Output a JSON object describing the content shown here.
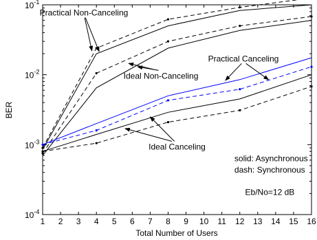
{
  "chart_data": {
    "type": "line",
    "xlabel": "Total Number of Users",
    "ylabel": "BER",
    "y_scale": "log",
    "xlim": [
      1,
      16
    ],
    "ylim": [
      0.0001,
      0.1
    ],
    "x_ticks": [
      "1",
      "2",
      "3",
      "4",
      "5",
      "6",
      "7",
      "8",
      "9",
      "10",
      "11",
      "12",
      "13",
      "14",
      "15",
      "16"
    ],
    "y_ticks": [
      {
        "value": 0.1,
        "base": "10",
        "exp": "-1"
      },
      {
        "value": 0.01,
        "base": "10",
        "exp": "-2"
      },
      {
        "value": 0.001,
        "base": "10",
        "exp": "-3"
      },
      {
        "value": 0.0001,
        "base": "10",
        "exp": "-4"
      }
    ],
    "grid": false,
    "series": [
      {
        "x": [
          1,
          4,
          8,
          12,
          16
        ],
        "values": [
          0.00085,
          0.02,
          0.05,
          0.083,
          0.1
        ],
        "style": "solid",
        "color": "#000000",
        "markers": false
      },
      {
        "x": [
          1,
          4,
          8,
          12,
          16
        ],
        "values": [
          0.0007,
          0.0065,
          0.024,
          0.043,
          0.06
        ],
        "style": "solid",
        "color": "#000000",
        "markers": false
      },
      {
        "x": [
          1,
          4,
          8,
          12,
          16
        ],
        "values": [
          0.0009,
          0.024,
          0.062,
          0.092,
          0.125
        ],
        "style": "dash",
        "color": "#000000",
        "markers": true
      },
      {
        "x": [
          1,
          4,
          8,
          12,
          16
        ],
        "values": [
          0.00075,
          0.0105,
          0.03,
          0.05,
          0.068
        ],
        "style": "dash",
        "color": "#000000",
        "markers": true
      },
      {
        "x": [
          1,
          4,
          8,
          12,
          16
        ],
        "values": [
          0.001,
          0.002,
          0.005,
          0.0085,
          0.0175
        ],
        "style": "solid",
        "color": "#0000ff",
        "markers": false
      },
      {
        "x": [
          1,
          4,
          8,
          12,
          16
        ],
        "values": [
          0.001,
          0.0016,
          0.0043,
          0.0062,
          0.013
        ],
        "style": "dash",
        "color": "#0000ff",
        "markers": true
      },
      {
        "x": [
          1,
          4,
          8,
          12,
          16
        ],
        "values": [
          0.0008,
          0.0014,
          0.0029,
          0.0045,
          0.01
        ],
        "style": "solid",
        "color": "#000000",
        "markers": false
      },
      {
        "x": [
          1,
          4,
          8,
          12,
          16
        ],
        "values": [
          0.0008,
          0.00105,
          0.0021,
          0.0031,
          0.0068
        ],
        "style": "dash",
        "color": "#000000",
        "markers": true
      }
    ],
    "annotations": [
      {
        "text": "Practical Non-Canceling",
        "x": 3.3,
        "y": 0.07,
        "arrows": [
          {
            "x": 4.15,
            "y": 0.0215
          },
          {
            "x": 3.75,
            "y": 0.022
          }
        ]
      },
      {
        "text": "Ideal Non-Canceling",
        "x": 7.6,
        "y": 0.0088,
        "arrows": [
          {
            "x": 6.3,
            "y": 0.013
          },
          {
            "x": 5.8,
            "y": 0.0145
          }
        ]
      },
      {
        "text": "Practical Canceling",
        "x": 12.2,
        "y": 0.0155,
        "arrows": [
          {
            "x": 11.2,
            "y": 0.0083
          },
          {
            "x": 13.6,
            "y": 0.0085
          }
        ]
      },
      {
        "text": "Ideal Canceling",
        "x": 8.5,
        "y": 0.00085,
        "arrows": [
          {
            "x": 7.0,
            "y": 0.0025
          },
          {
            "x": 5.6,
            "y": 0.0017
          }
        ]
      },
      {
        "text": "solid:  Asynchronous",
        "x": 11.7,
        "y": 0.00058,
        "arrows": []
      },
      {
        "text": "dash:  Synchronous",
        "x": 11.7,
        "y": 0.0004,
        "arrows": []
      },
      {
        "text": "Eb/No=12 dB",
        "x": 12.3,
        "y": 0.00019,
        "arrows": []
      }
    ]
  }
}
